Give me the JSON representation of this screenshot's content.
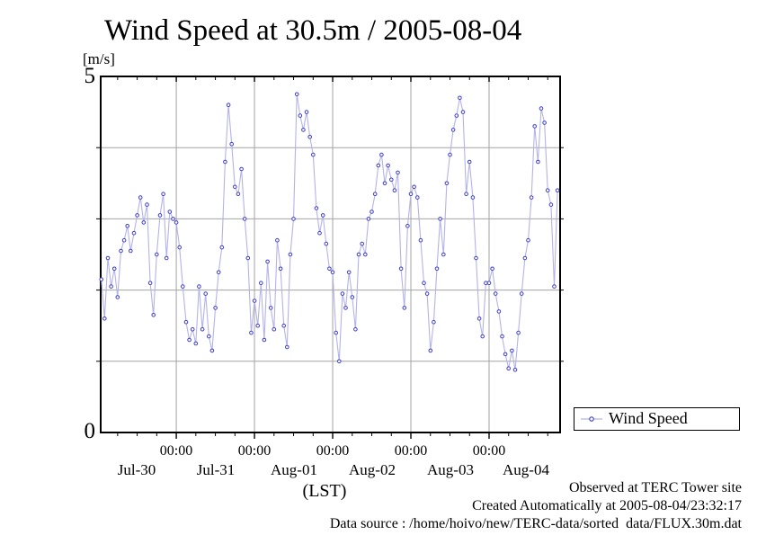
{
  "title": "Wind Speed at 30.5m / 2005-08-04",
  "y_axis": {
    "unit_label": "[m/s]",
    "max_label": "5",
    "min_label": "0"
  },
  "x_axis": {
    "axis_label": "(LST)",
    "zero_labels": [
      "00:00",
      "00:00",
      "00:00",
      "00:00",
      "00:00"
    ],
    "day_labels": [
      "Jul-30",
      "Jul-31",
      "Aug-01",
      "Aug-02",
      "Aug-03",
      "Aug-04"
    ]
  },
  "legend": {
    "label": "Wind Speed"
  },
  "footer": {
    "line1": "Observed at TERC Tower site",
    "line2": "Created Automatically at 2005-08-04/23:32:17",
    "line3": "Data source : /home/hoivo/new/TERC-data/sorted  data/FLUX.30m.dat"
  },
  "colors": {
    "line": "#b3b3ea",
    "marker": "#3c3cd0",
    "grid": "#a3a3a3",
    "axis": "#000000"
  },
  "chart_data": {
    "type": "line",
    "title": "Wind Speed at 30.5m / 2005-08-04",
    "ylabel": "[m/s]",
    "xlabel": "(LST)",
    "legend_entries": [
      "Wind Speed"
    ],
    "ylim": [
      0,
      5
    ],
    "y_gridline_values": [
      1,
      2,
      3,
      4
    ],
    "x_gridline_hours": [
      24,
      48,
      72,
      96,
      120
    ],
    "x_minor_tick_interval_hours": 6,
    "x_plot_range_hours": [
      0.8,
      141.8
    ],
    "x_start": "2005-07-30 00:00 LST",
    "sample_interval_hours": 1,
    "grid": true,
    "legend_position": "outside-bottom-right",
    "series": [
      {
        "name": "Wind Speed",
        "days": [
          {
            "date": "Jul-30",
            "values": [
              1.9,
              2.15,
              1.6,
              2.45,
              2.05,
              2.3,
              1.9,
              2.55,
              2.7,
              2.9,
              2.55,
              2.8,
              3.05,
              3.3,
              2.95,
              3.2,
              2.1,
              1.65,
              2.5,
              3.05,
              3.35,
              2.45,
              3.1,
              3.0
            ]
          },
          {
            "date": "Jul-31",
            "values": [
              2.95,
              2.6,
              2.05,
              1.55,
              1.3,
              1.45,
              1.25,
              2.05,
              1.45,
              1.95,
              1.35,
              1.15,
              1.75,
              2.25,
              2.6,
              3.8,
              4.6,
              4.05,
              3.45,
              3.35,
              3.7,
              3.0,
              2.45,
              1.4
            ]
          },
          {
            "date": "Aug-01",
            "values": [
              1.85,
              1.5,
              2.1,
              1.3,
              2.4,
              1.75,
              1.45,
              2.7,
              2.3,
              1.5,
              1.2,
              2.5,
              3.0,
              4.75,
              4.45,
              4.25,
              4.5,
              4.15,
              3.9,
              3.15,
              2.8,
              3.05,
              2.65,
              2.3
            ]
          },
          {
            "date": "Aug-02",
            "values": [
              2.25,
              1.4,
              1.0,
              1.95,
              1.75,
              2.25,
              1.9,
              1.45,
              2.5,
              2.65,
              2.5,
              3.0,
              3.1,
              3.35,
              3.75,
              3.9,
              3.5,
              3.75,
              3.55,
              3.4,
              3.65,
              2.3,
              1.75,
              2.9
            ]
          },
          {
            "date": "Aug-03",
            "values": [
              3.35,
              3.45,
              3.3,
              2.7,
              2.1,
              1.95,
              1.15,
              1.55,
              2.3,
              3.0,
              2.5,
              3.5,
              3.9,
              4.25,
              4.45,
              4.7,
              4.5,
              3.35,
              3.8,
              3.3,
              2.45,
              1.6,
              1.35,
              2.1
            ]
          },
          {
            "date": "Aug-04",
            "values": [
              2.1,
              2.3,
              1.95,
              1.7,
              1.35,
              1.1,
              0.9,
              1.15,
              0.88,
              1.4,
              1.95,
              2.45,
              2.7,
              3.3,
              4.3,
              3.8,
              4.55,
              4.35,
              3.4,
              3.2,
              2.05,
              3.4,
              3.2,
              2.7
            ]
          }
        ]
      }
    ]
  }
}
